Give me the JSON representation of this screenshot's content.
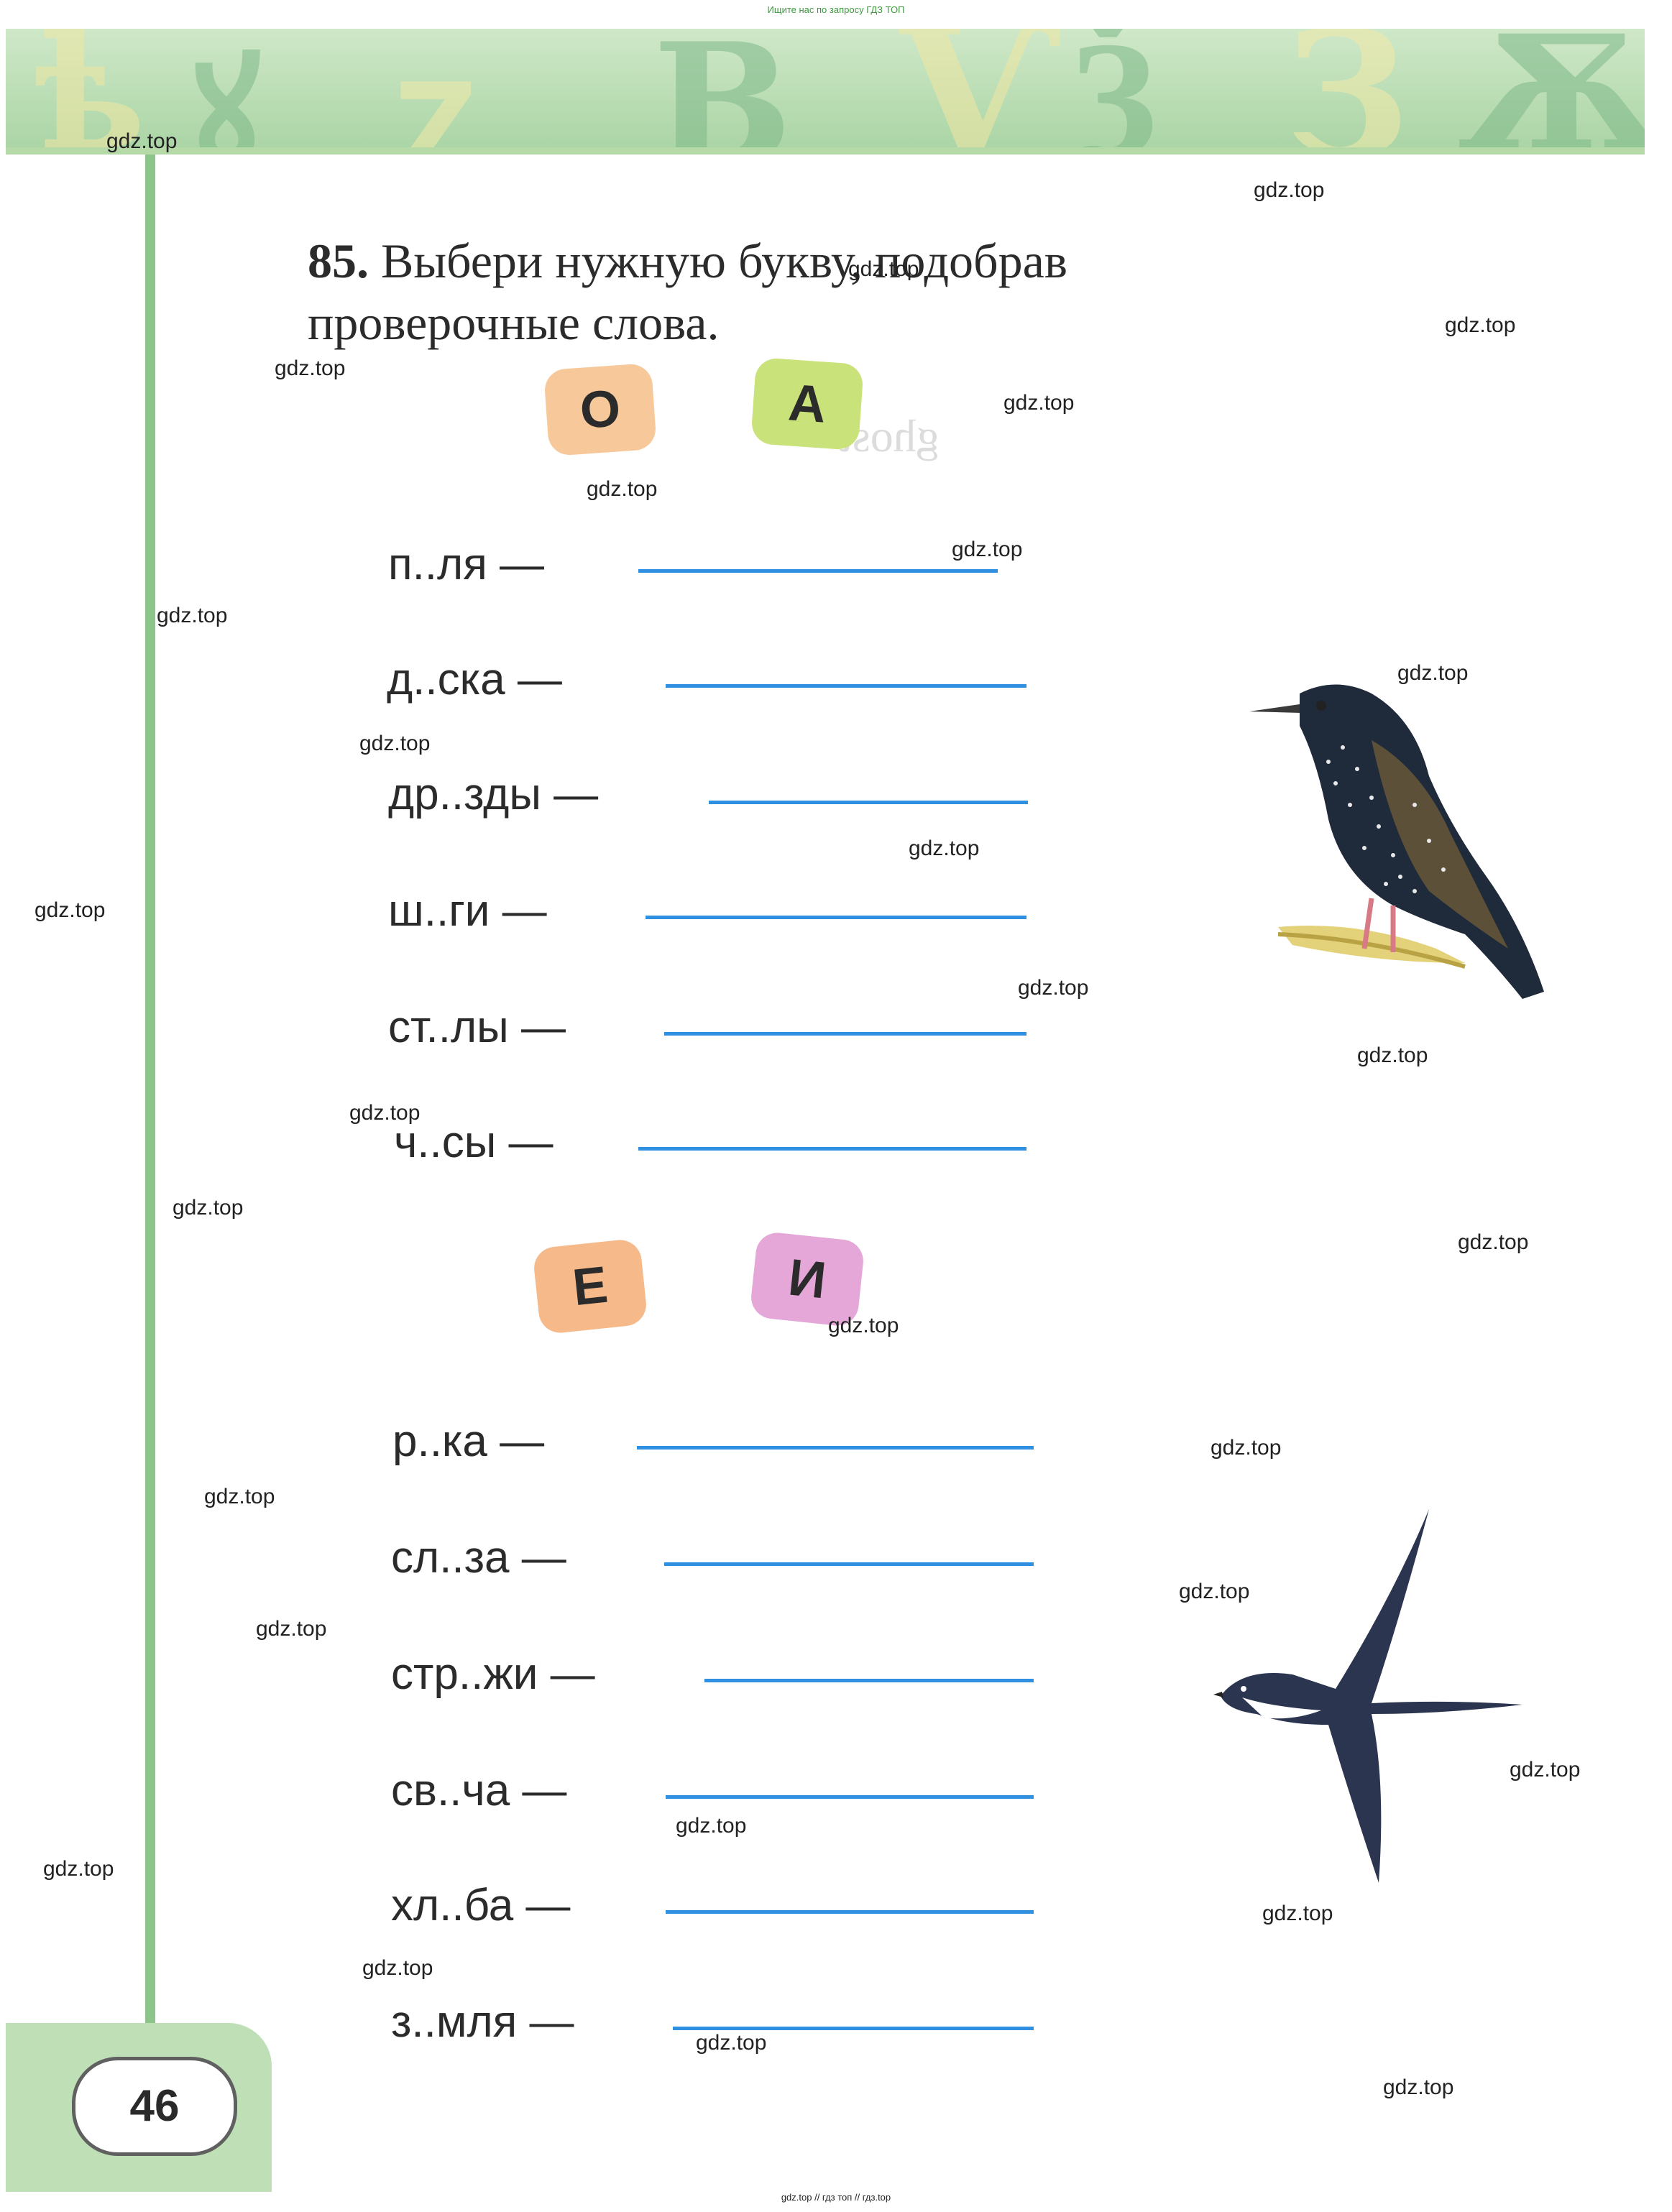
{
  "header_note": "Ищите нас по запросу ГДЗ ТОП",
  "footer_note": "gdz.top // гдз топ // гдз.top",
  "exercise": {
    "number": "85.",
    "line1": "Выбери нужную букву, подобрав",
    "line2": "проверочные слова."
  },
  "group1": {
    "letters": [
      "О",
      "А"
    ],
    "words": [
      "п..ля —",
      "д..ска —",
      "др..зды —",
      "ш..ги —",
      "ст..лы —",
      "ч..сы —"
    ]
  },
  "group2": {
    "letters": [
      "Е",
      "И"
    ],
    "words": [
      "р..ка —",
      "сл..за —",
      "стр..жи —",
      "св..ча —",
      "хл..ба —",
      "з..мля —"
    ]
  },
  "page_number": "46",
  "watermark": "gdz.top",
  "colors": {
    "blank_line": "#2f8fe0",
    "tile_o": "#f7c99a",
    "tile_a": "#c9e27a",
    "tile_e": "#f5b98a",
    "tile_i": "#e4a7d8",
    "margin_green": "#8cc489"
  },
  "icons": [
    "starling-illustration",
    "swallow-illustration"
  ]
}
